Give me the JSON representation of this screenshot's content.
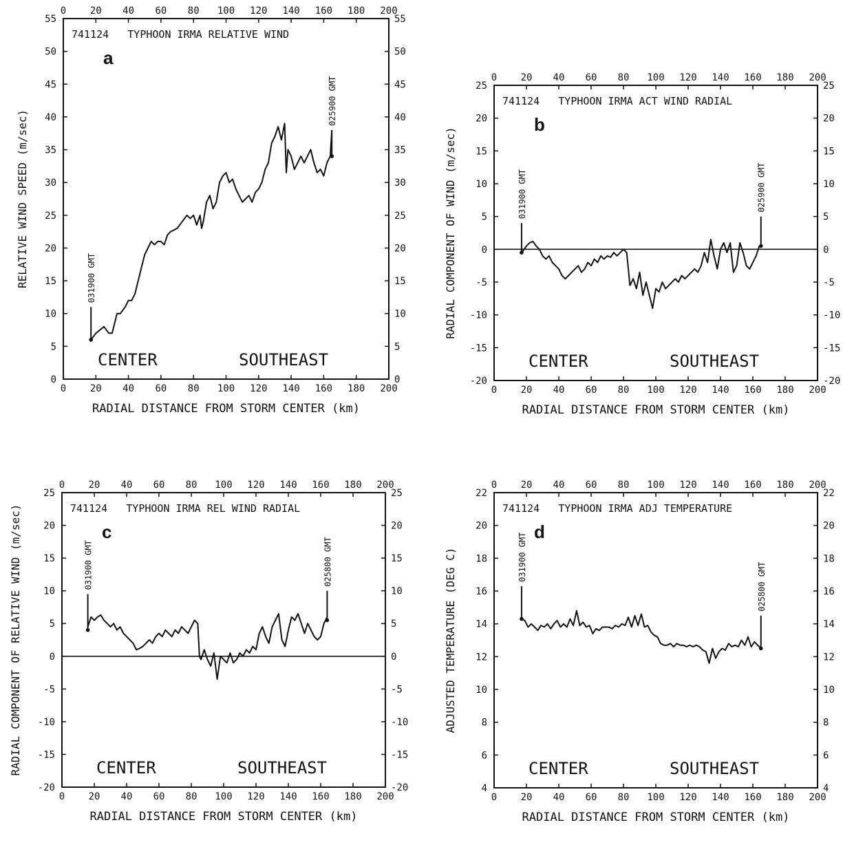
{
  "chart_data": [
    {
      "type": "line",
      "panel_letter": "a",
      "title": "741124   TYPHOON IRMA RELATIVE WIND",
      "xlabel": "RADIAL DISTANCE FROM STORM CENTER (km)",
      "ylabel": "RELATIVE WIND SPEED (m/sec)",
      "xlim": [
        0,
        200
      ],
      "ylim": [
        0,
        55
      ],
      "xticks": [
        0,
        20,
        40,
        60,
        80,
        100,
        120,
        140,
        160,
        180,
        200
      ],
      "yticks": [
        0,
        5,
        10,
        15,
        20,
        25,
        30,
        35,
        40,
        45,
        50,
        55
      ],
      "zero_line": false,
      "grid": false,
      "annotations": [
        {
          "text": "031900 GMT",
          "x": 17,
          "y_from": 6,
          "y_to": 11
        },
        {
          "text": "025900 GMT",
          "x": 165,
          "y_from": 34,
          "y_to": 38
        },
        {
          "text": "CENTER"
        },
        {
          "text": "SOUTHEAST"
        }
      ],
      "series": [
        {
          "x": [
            17,
            20,
            25,
            28,
            30,
            32,
            33,
            35,
            38,
            40,
            42,
            44,
            46,
            48,
            50,
            52,
            54,
            56,
            58,
            60,
            62,
            64,
            66,
            70,
            73,
            76,
            78,
            80,
            82,
            84,
            85,
            86,
            88,
            90,
            92,
            94,
            96,
            98,
            100,
            102,
            104,
            106,
            108,
            110,
            112,
            114,
            116,
            118,
            120,
            122,
            124,
            126,
            128,
            130,
            132,
            134,
            136,
            137,
            138,
            140,
            142,
            144,
            146,
            148,
            150,
            152,
            154,
            156,
            158,
            160,
            162,
            164,
            165
          ],
          "y": [
            6,
            7,
            8,
            7,
            7,
            9,
            10,
            10,
            11,
            12,
            12,
            13,
            15,
            17,
            19,
            20,
            21,
            20.5,
            21,
            21,
            20.5,
            22,
            22.5,
            23,
            24,
            25,
            24.5,
            25,
            23.5,
            25,
            23,
            24,
            27,
            28,
            26,
            27,
            30,
            31,
            31.5,
            30,
            30.5,
            29,
            28,
            27,
            27.5,
            28,
            27,
            28.5,
            29,
            30,
            32,
            33,
            36,
            37,
            38.5,
            36.5,
            39,
            31.5,
            35,
            34,
            32,
            33,
            34,
            33,
            34,
            35,
            33,
            31.5,
            32,
            31,
            33,
            34,
            38
          ]
        }
      ]
    },
    {
      "type": "line",
      "panel_letter": "b",
      "title": "741124   TYPHOON IRMA ACT WIND RADIAL",
      "xlabel": "RADIAL DISTANCE FROM STORM CENTER (km)",
      "ylabel": "RADIAL COMPONENT OF WIND (m/sec)",
      "xlim": [
        0,
        200
      ],
      "ylim": [
        -20,
        25
      ],
      "xticks": [
        0,
        20,
        40,
        60,
        80,
        100,
        120,
        140,
        160,
        180,
        200
      ],
      "yticks": [
        -20,
        -15,
        -10,
        -5,
        0,
        5,
        10,
        15,
        20,
        25
      ],
      "zero_line": true,
      "grid": false,
      "annotations": [
        {
          "text": "031900 GMT",
          "x": 17,
          "y_from": -0.5,
          "y_to": 4
        },
        {
          "text": "025900 GMT",
          "x": 165,
          "y_from": 0.5,
          "y_to": 5
        },
        {
          "text": "CENTER"
        },
        {
          "text": "SOUTHEAST"
        }
      ],
      "series": [
        {
          "x": [
            17,
            20,
            22,
            24,
            26,
            28,
            30,
            32,
            34,
            36,
            38,
            40,
            42,
            44,
            46,
            48,
            50,
            52,
            54,
            56,
            58,
            60,
            62,
            64,
            66,
            68,
            70,
            72,
            74,
            76,
            78,
            80,
            82,
            84,
            86,
            88,
            90,
            92,
            94,
            96,
            98,
            100,
            102,
            104,
            106,
            108,
            110,
            112,
            114,
            116,
            118,
            120,
            122,
            124,
            126,
            128,
            130,
            132,
            134,
            136,
            138,
            140,
            142,
            144,
            146,
            148,
            150,
            152,
            154,
            156,
            158,
            160,
            162,
            164,
            165
          ],
          "y": [
            -0.5,
            0.5,
            1,
            1.2,
            0.5,
            0,
            -1,
            -1.5,
            -1,
            -2,
            -2.5,
            -3,
            -4,
            -4.5,
            -4,
            -3.5,
            -3,
            -2.5,
            -3.5,
            -3,
            -2,
            -2.5,
            -1.5,
            -2,
            -1,
            -1.5,
            -1,
            -1.2,
            -0.5,
            -1,
            -0.5,
            0,
            -0.5,
            -5.5,
            -4.5,
            -6,
            -3.5,
            -7,
            -5,
            -7,
            -9,
            -6,
            -6.5,
            -5,
            -6,
            -5.5,
            -5,
            -4.5,
            -5,
            -4,
            -4.5,
            -4,
            -3.5,
            -3,
            -3.5,
            -2.5,
            -0.5,
            -2,
            1.5,
            -1,
            -3,
            0,
            1,
            -0.5,
            1,
            -3.5,
            -2.5,
            1,
            -0.5,
            -2.5,
            -3,
            -2,
            -1,
            0.5,
            0.5
          ]
        }
      ]
    },
    {
      "type": "line",
      "panel_letter": "c",
      "title": "741124   TYPHOON IRMA REL WIND RADIAL",
      "xlabel": "RADIAL DISTANCE FROM STORM CENTER (km)",
      "ylabel": "RADIAL COMPONENT OF RELATIVE WIND (m/sec)",
      "xlim": [
        0,
        200
      ],
      "ylim": [
        -20,
        25
      ],
      "xticks": [
        0,
        20,
        40,
        60,
        80,
        100,
        120,
        140,
        160,
        180,
        200
      ],
      "yticks": [
        -20,
        -15,
        -10,
        -5,
        0,
        5,
        10,
        15,
        20,
        25
      ],
      "zero_line": true,
      "grid": false,
      "annotations": [
        {
          "text": "031900 GMT",
          "x": 16,
          "y_from": 4,
          "y_to": 9.5
        },
        {
          "text": "025800 GMT",
          "x": 164,
          "y_from": 5.5,
          "y_to": 10
        },
        {
          "text": "CENTER"
        },
        {
          "text": "SOUTHEAST"
        }
      ],
      "series": [
        {
          "x": [
            16,
            18,
            20,
            22,
            24,
            26,
            28,
            30,
            32,
            34,
            36,
            38,
            40,
            42,
            44,
            46,
            48,
            50,
            52,
            54,
            56,
            58,
            60,
            62,
            64,
            66,
            68,
            70,
            72,
            74,
            76,
            78,
            80,
            82,
            84,
            85,
            86,
            88,
            90,
            92,
            94,
            96,
            98,
            100,
            102,
            104,
            106,
            108,
            110,
            112,
            114,
            116,
            118,
            120,
            122,
            124,
            126,
            128,
            130,
            132,
            134,
            136,
            138,
            140,
            142,
            144,
            146,
            148,
            150,
            152,
            154,
            156,
            158,
            160,
            162,
            164
          ],
          "y": [
            4.5,
            6,
            5.5,
            6,
            6.3,
            5.5,
            5,
            4.5,
            5,
            4,
            4.5,
            3.5,
            3,
            2.5,
            2,
            1,
            1.2,
            1.5,
            2,
            2.5,
            2,
            3,
            3.5,
            3,
            4,
            3.5,
            3,
            4,
            3.5,
            4.5,
            4,
            3.5,
            4.5,
            5.5,
            5,
            0,
            -0.5,
            1,
            -0.5,
            -1.5,
            0.5,
            -3.5,
            0,
            -0.5,
            -1,
            0.5,
            -1,
            -0.5,
            0.5,
            0,
            1,
            0.5,
            1.5,
            1,
            3.5,
            4.5,
            3,
            2,
            4.5,
            5.5,
            6.5,
            2.5,
            1.5,
            4,
            6,
            5.5,
            6.5,
            5,
            3.5,
            5,
            4,
            3,
            2.5,
            3,
            5,
            6
          ]
        }
      ]
    },
    {
      "type": "line",
      "panel_letter": "d",
      "title": "741124   TYPHOON IRMA ADJ TEMPERATURE",
      "xlabel": "RADIAL DISTANCE FROM STORM CENTER (km)",
      "ylabel": "ADJUSTED TEMPERATURE (DEG C)",
      "xlim": [
        0,
        200
      ],
      "ylim": [
        4,
        22
      ],
      "xticks": [
        0,
        20,
        40,
        60,
        80,
        100,
        120,
        140,
        160,
        180,
        200
      ],
      "yticks": [
        4,
        6,
        8,
        10,
        12,
        14,
        16,
        18,
        20,
        22
      ],
      "zero_line": false,
      "grid": false,
      "annotations": [
        {
          "text": "031900 GMT",
          "x": 17,
          "y_from": 14.3,
          "y_to": 16.3
        },
        {
          "text": "025800 GMT",
          "x": 165,
          "y_from": 12.5,
          "y_to": 14.5
        },
        {
          "text": "CENTER"
        },
        {
          "text": "SOUTHEAST"
        }
      ],
      "series": [
        {
          "x": [
            17,
            19,
            21,
            23,
            25,
            27,
            29,
            31,
            33,
            35,
            37,
            39,
            41,
            43,
            45,
            47,
            49,
            51,
            53,
            55,
            57,
            59,
            61,
            63,
            65,
            67,
            69,
            71,
            73,
            75,
            77,
            79,
            81,
            83,
            85,
            87,
            89,
            91,
            93,
            95,
            97,
            99,
            101,
            103,
            105,
            107,
            109,
            111,
            113,
            115,
            117,
            119,
            121,
            123,
            125,
            127,
            129,
            131,
            133,
            135,
            137,
            139,
            141,
            143,
            145,
            147,
            149,
            151,
            153,
            155,
            157,
            159,
            161,
            163,
            165
          ],
          "y": [
            14.3,
            14.2,
            13.8,
            14,
            13.8,
            13.6,
            13.9,
            13.8,
            14,
            13.7,
            14,
            14.2,
            13.8,
            14,
            13.8,
            14.3,
            13.9,
            14.8,
            13.9,
            14.1,
            13.8,
            13.9,
            13.4,
            13.7,
            13.6,
            13.8,
            13.8,
            13.8,
            13.7,
            13.9,
            13.8,
            14,
            13.9,
            14.4,
            13.8,
            14.5,
            13.9,
            14.6,
            13.8,
            13.9,
            13.5,
            13.3,
            13.2,
            12.8,
            12.7,
            12.7,
            12.8,
            12.6,
            12.8,
            12.7,
            12.7,
            12.6,
            12.7,
            12.6,
            12.7,
            12.6,
            12.4,
            12.3,
            11.6,
            12.5,
            11.9,
            12.3,
            12.5,
            12.4,
            12.8,
            12.6,
            12.7,
            12.6,
            13,
            12.7,
            13.2,
            12.6,
            12.9,
            12.7,
            12.5
          ]
        }
      ]
    }
  ]
}
